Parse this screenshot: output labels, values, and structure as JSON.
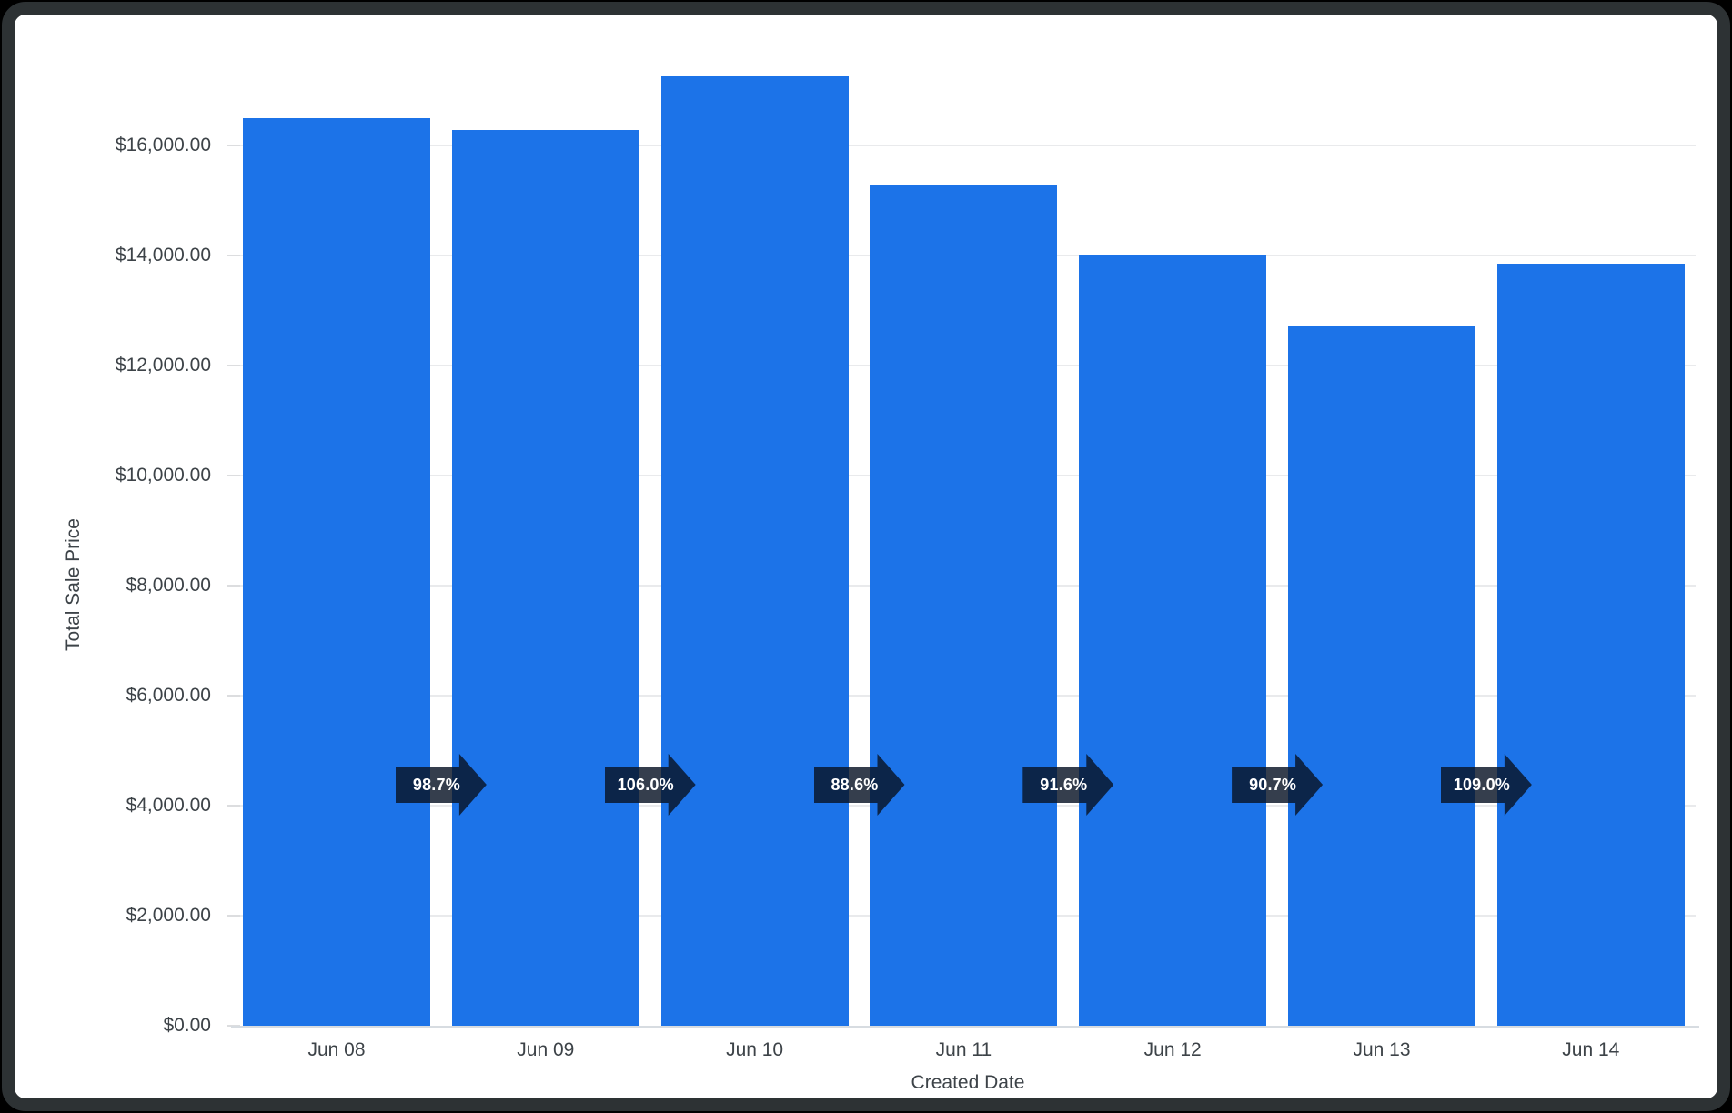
{
  "chart_data": {
    "type": "bar",
    "title": "",
    "xlabel": "Created Date",
    "ylabel": "Total Sale Price",
    "categories": [
      "Jun 08",
      "Jun 09",
      "Jun 10",
      "Jun 11",
      "Jun 12",
      "Jun 13",
      "Jun 14"
    ],
    "values": [
      16500,
      16286,
      17263,
      15295,
      14010,
      12707,
      13851
    ],
    "percent_change_badges": [
      "98.7%",
      "106.0%",
      "88.6%",
      "91.6%",
      "90.7%",
      "109.0%"
    ],
    "y_ticks": [
      {
        "label": "$0.00",
        "value": 0
      },
      {
        "label": "$2,000.00",
        "value": 2000
      },
      {
        "label": "$4,000.00",
        "value": 4000
      },
      {
        "label": "$6,000.00",
        "value": 6000
      },
      {
        "label": "$8,000.00",
        "value": 8000
      },
      {
        "label": "$10,000.00",
        "value": 10000
      },
      {
        "label": "$12,000.00",
        "value": 12000
      },
      {
        "label": "$14,000.00",
        "value": 14000
      },
      {
        "label": "$16,000.00",
        "value": 16000
      }
    ],
    "ylim": [
      0,
      17600
    ],
    "grid": true,
    "legend": "none",
    "bar_color": "#1c73e8",
    "badge_color_rgba": "rgba(8,20,38,0.82)",
    "grid_color": "#e9eaec",
    "text_color": "#3d4348"
  }
}
